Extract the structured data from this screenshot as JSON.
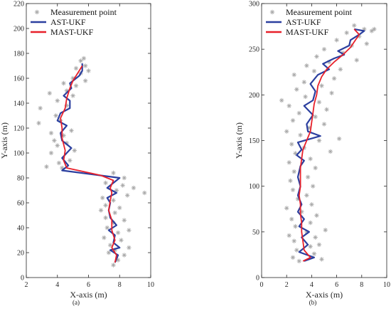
{
  "chart_data": [
    {
      "id": "a",
      "type": "line",
      "caption": "(a)",
      "xlabel": "X-axis (m)",
      "ylabel": "Y-axis (m)",
      "xlim": [
        2,
        10
      ],
      "ylim": [
        0,
        220
      ],
      "xticks": [
        2,
        4,
        6,
        8,
        10
      ],
      "yticks": [
        0,
        20,
        40,
        60,
        80,
        100,
        120,
        140,
        160,
        180,
        200,
        220
      ],
      "grid": false,
      "legend_position": "top-left",
      "legend": [
        "Measurement point",
        "AST-UKF",
        "MAST-UKF"
      ],
      "series": [
        {
          "name": "AST-UKF",
          "color": "#2b3f9f",
          "points": [
            [
              7.7,
              12
            ],
            [
              7.9,
              18
            ],
            [
              7.4,
              22
            ],
            [
              8.0,
              24
            ],
            [
              7.6,
              28
            ],
            [
              7.7,
              34
            ],
            [
              7.3,
              38
            ],
            [
              7.8,
              42
            ],
            [
              7.4,
              48
            ],
            [
              7.3,
              54
            ],
            [
              7.4,
              60
            ],
            [
              7.2,
              64
            ],
            [
              7.8,
              68
            ],
            [
              7.2,
              72
            ],
            [
              7.6,
              76
            ],
            [
              8.0,
              80
            ],
            [
              4.3,
              86
            ],
            [
              4.7,
              90
            ],
            [
              4.3,
              96
            ],
            [
              4.9,
              104
            ],
            [
              4.3,
              110
            ],
            [
              4.2,
              116
            ],
            [
              4.6,
              122
            ],
            [
              4.0,
              126
            ],
            [
              4.2,
              132
            ],
            [
              4.8,
              136
            ],
            [
              4.8,
              142
            ],
            [
              4.4,
              146
            ],
            [
              4.9,
              152
            ],
            [
              4.8,
              156
            ],
            [
              5.4,
              162
            ],
            [
              5.6,
              166
            ],
            [
              5.6,
              172
            ]
          ]
        },
        {
          "name": "MAST-UKF",
          "color": "#e8202a",
          "points": [
            [
              7.7,
              12
            ],
            [
              7.8,
              18
            ],
            [
              7.5,
              24
            ],
            [
              7.7,
              30
            ],
            [
              7.5,
              38
            ],
            [
              7.5,
              46
            ],
            [
              7.3,
              54
            ],
            [
              7.4,
              62
            ],
            [
              7.5,
              68
            ],
            [
              7.4,
              72
            ],
            [
              7.6,
              78
            ],
            [
              6.8,
              82
            ],
            [
              4.6,
              88
            ],
            [
              4.4,
              94
            ],
            [
              4.5,
              102
            ],
            [
              4.3,
              112
            ],
            [
              4.3,
              120
            ],
            [
              4.2,
              128
            ],
            [
              4.5,
              136
            ],
            [
              4.6,
              144
            ],
            [
              4.8,
              152
            ],
            [
              5.0,
              158
            ],
            [
              5.3,
              164
            ],
            [
              5.6,
              170
            ]
          ]
        }
      ],
      "measurements": [
        [
          7.6,
          10
        ],
        [
          7.9,
          14
        ],
        [
          8.3,
          18
        ],
        [
          7.3,
          20
        ],
        [
          7.7,
          22
        ],
        [
          8.6,
          24
        ],
        [
          7.4,
          26
        ],
        [
          8.1,
          30
        ],
        [
          7.0,
          32
        ],
        [
          7.9,
          36
        ],
        [
          8.6,
          38
        ],
        [
          7.2,
          40
        ],
        [
          7.6,
          44
        ],
        [
          8.3,
          46
        ],
        [
          7.1,
          48
        ],
        [
          7.7,
          52
        ],
        [
          6.8,
          54
        ],
        [
          8.0,
          56
        ],
        [
          7.1,
          58
        ],
        [
          7.6,
          62
        ],
        [
          6.9,
          64
        ],
        [
          8.5,
          66
        ],
        [
          7.8,
          70
        ],
        [
          9.6,
          68
        ],
        [
          8.9,
          72
        ],
        [
          8.2,
          74
        ],
        [
          7.1,
          76
        ],
        [
          8.3,
          80
        ],
        [
          7.6,
          84
        ],
        [
          4.3,
          88
        ],
        [
          3.3,
          89
        ],
        [
          4.1,
          92
        ],
        [
          4.8,
          94
        ],
        [
          3.6,
          100
        ],
        [
          5.1,
          102
        ],
        [
          4.0,
          106
        ],
        [
          4.6,
          108
        ],
        [
          3.8,
          110
        ],
        [
          4.4,
          114
        ],
        [
          3.6,
          116
        ],
        [
          4.9,
          118
        ],
        [
          2.8,
          124
        ],
        [
          4.2,
          126
        ],
        [
          3.9,
          130
        ],
        [
          2.9,
          136
        ],
        [
          4.6,
          138
        ],
        [
          4.0,
          142
        ],
        [
          5.0,
          146
        ],
        [
          3.5,
          148
        ],
        [
          4.6,
          150
        ],
        [
          5.2,
          154
        ],
        [
          4.4,
          156
        ],
        [
          5.8,
          158
        ],
        [
          5.0,
          160
        ],
        [
          5.5,
          164
        ],
        [
          6.0,
          166
        ],
        [
          5.2,
          168
        ],
        [
          5.8,
          170
        ],
        [
          5.5,
          174
        ],
        [
          5.7,
          176
        ]
      ]
    },
    {
      "id": "b",
      "type": "line",
      "caption": "(b)",
      "xlabel": "X-axis (m)",
      "ylabel": "Y-axis (m)",
      "xlim": [
        0,
        10
      ],
      "ylim": [
        0,
        300
      ],
      "xticks": [
        0,
        2,
        4,
        6,
        8,
        10
      ],
      "yticks": [
        0,
        50,
        100,
        150,
        200,
        250,
        300
      ],
      "grid": false,
      "legend_position": "top-left",
      "legend": [
        "Measurement point",
        "AST-UKF",
        "MAST-UKF"
      ],
      "series": [
        {
          "name": "AST-UKF",
          "color": "#2b3f9f",
          "points": [
            [
              3.4,
              18
            ],
            [
              4.2,
              22
            ],
            [
              3.0,
              28
            ],
            [
              3.7,
              36
            ],
            [
              3.2,
              44
            ],
            [
              3.8,
              50
            ],
            [
              3.0,
              56
            ],
            [
              3.4,
              64
            ],
            [
              2.9,
              72
            ],
            [
              3.2,
              80
            ],
            [
              2.9,
              90
            ],
            [
              3.1,
              100
            ],
            [
              2.9,
              110
            ],
            [
              3.1,
              122
            ],
            [
              3.4,
              128
            ],
            [
              2.8,
              134
            ],
            [
              3.2,
              140
            ],
            [
              2.9,
              148
            ],
            [
              4.7,
              155
            ],
            [
              3.7,
              160
            ],
            [
              3.6,
              168
            ],
            [
              4.1,
              178
            ],
            [
              3.4,
              188
            ],
            [
              4.1,
              194
            ],
            [
              4.3,
              204
            ],
            [
              3.9,
              212
            ],
            [
              4.5,
              222
            ],
            [
              5.4,
              228
            ],
            [
              4.9,
              234
            ],
            [
              5.8,
              240
            ],
            [
              6.6,
              244
            ],
            [
              6.1,
              248
            ],
            [
              7.0,
              254
            ],
            [
              7.1,
              260
            ],
            [
              7.8,
              266
            ],
            [
              8.2,
              270
            ],
            [
              7.4,
              272
            ]
          ]
        },
        {
          "name": "MAST-UKF",
          "color": "#e8202a",
          "points": [
            [
              3.3,
              18
            ],
            [
              3.9,
              22
            ],
            [
              3.4,
              30
            ],
            [
              3.3,
              40
            ],
            [
              3.2,
              50
            ],
            [
              3.2,
              60
            ],
            [
              3.1,
              70
            ],
            [
              3.1,
              80
            ],
            [
              3.0,
              90
            ],
            [
              3.1,
              100
            ],
            [
              3.1,
              110
            ],
            [
              3.1,
              120
            ],
            [
              3.2,
              130
            ],
            [
              3.3,
              140
            ],
            [
              3.6,
              150
            ],
            [
              3.9,
              160
            ],
            [
              4.0,
              170
            ],
            [
              4.1,
              180
            ],
            [
              4.2,
              190
            ],
            [
              4.4,
              200
            ],
            [
              4.5,
              210
            ],
            [
              4.8,
              220
            ],
            [
              5.2,
              228
            ],
            [
              5.8,
              236
            ],
            [
              6.5,
              244
            ],
            [
              7.1,
              252
            ],
            [
              7.5,
              260
            ],
            [
              7.8,
              266
            ],
            [
              7.4,
              272
            ]
          ]
        }
      ],
      "measurements": [
        [
          3.0,
          18
        ],
        [
          4.8,
          20
        ],
        [
          2.5,
          22
        ],
        [
          4.2,
          26
        ],
        [
          2.8,
          30
        ],
        [
          3.9,
          34
        ],
        [
          4.6,
          36
        ],
        [
          2.6,
          40
        ],
        [
          4.3,
          44
        ],
        [
          2.2,
          46
        ],
        [
          3.6,
          50
        ],
        [
          5.1,
          52
        ],
        [
          2.7,
          56
        ],
        [
          3.9,
          60
        ],
        [
          2.4,
          64
        ],
        [
          4.4,
          68
        ],
        [
          3.2,
          72
        ],
        [
          2.0,
          76
        ],
        [
          4.0,
          80
        ],
        [
          2.9,
          86
        ],
        [
          3.6,
          90
        ],
        [
          2.5,
          96
        ],
        [
          4.1,
          100
        ],
        [
          2.3,
          106
        ],
        [
          3.7,
          110
        ],
        [
          2.6,
          116
        ],
        [
          4.3,
          120
        ],
        [
          2.2,
          126
        ],
        [
          3.9,
          130
        ],
        [
          2.7,
          136
        ],
        [
          5.5,
          138
        ],
        [
          3.4,
          142
        ],
        [
          2.4,
          146
        ],
        [
          4.6,
          150
        ],
        [
          6.2,
          152
        ],
        [
          3.1,
          156
        ],
        [
          2.0,
          160
        ],
        [
          3.8,
          164
        ],
        [
          5.0,
          168
        ],
        [
          2.5,
          172
        ],
        [
          4.3,
          176
        ],
        [
          3.0,
          180
        ],
        [
          5.2,
          184
        ],
        [
          2.2,
          188
        ],
        [
          4.6,
          192
        ],
        [
          1.6,
          194
        ],
        [
          3.5,
          198
        ],
        [
          5.6,
          202
        ],
        [
          2.8,
          206
        ],
        [
          4.8,
          210
        ],
        [
          3.4,
          214
        ],
        [
          5.8,
          218
        ],
        [
          2.6,
          222
        ],
        [
          4.2,
          226
        ],
        [
          6.3,
          228
        ],
        [
          3.6,
          232
        ],
        [
          5.4,
          236
        ],
        [
          7.6,
          238
        ],
        [
          4.4,
          242
        ],
        [
          6.5,
          246
        ],
        [
          5.0,
          250
        ],
        [
          7.2,
          254
        ],
        [
          8.4,
          256
        ],
        [
          6.0,
          260
        ],
        [
          7.8,
          264
        ],
        [
          8.8,
          270
        ],
        [
          6.8,
          268
        ],
        [
          8.2,
          272
        ],
        [
          7.4,
          276
        ],
        [
          9.0,
          272
        ]
      ]
    }
  ],
  "colors": {
    "measurement": "#a8a8a8",
    "axis": "#262626"
  }
}
